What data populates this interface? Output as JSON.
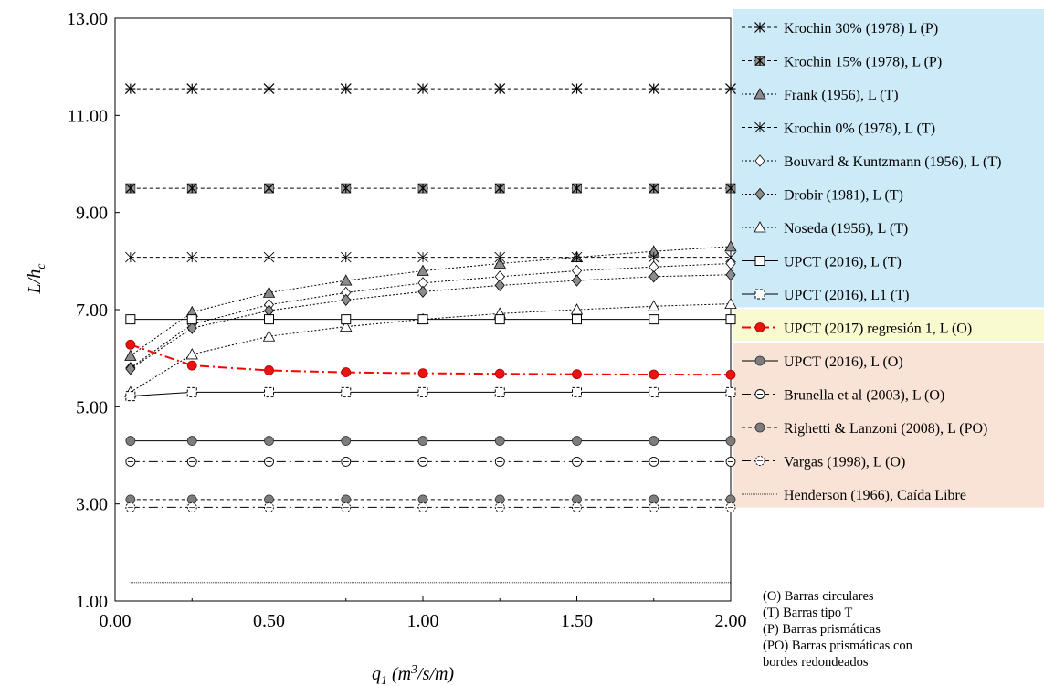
{
  "chart_data": {
    "type": "line",
    "xlabel": "q1 (m3/s/m)",
    "ylabel": "L/hc",
    "xlim": [
      0,
      2
    ],
    "ylim": [
      1,
      13
    ],
    "xticks": [
      "0.00",
      "0.50",
      "1.00",
      "1.50",
      "2.00"
    ],
    "yticks": [
      "1.00",
      "3.00",
      "5.00",
      "7.00",
      "9.00",
      "11.00",
      "13.00"
    ],
    "grid": false,
    "legend_position": "right",
    "x": [
      0.05,
      0.25,
      0.5,
      0.75,
      1.0,
      1.25,
      1.5,
      1.75,
      2.0
    ],
    "series": [
      {
        "name": "Krochin 30% (1978) L (P)",
        "marker": "star",
        "line": "dash",
        "color": "#000000",
        "values": [
          11.55,
          11.55,
          11.55,
          11.55,
          11.55,
          11.55,
          11.55,
          11.55,
          11.55
        ]
      },
      {
        "name": "Krochin 15% (1978), L (P)",
        "marker": "boxstar",
        "line": "dash",
        "color": "#000000",
        "values": [
          9.5,
          9.5,
          9.5,
          9.5,
          9.5,
          9.5,
          9.5,
          9.5,
          9.5
        ]
      },
      {
        "name": "Frank (1956), L (T)",
        "marker": "triangle-filled",
        "line": "dot",
        "color": "#000000",
        "values": [
          6.05,
          6.95,
          7.35,
          7.6,
          7.8,
          7.95,
          8.08,
          8.2,
          8.3
        ]
      },
      {
        "name": "Krochin 0% (1978), L (T)",
        "marker": "star-light",
        "line": "dash",
        "color": "#000000",
        "values": [
          8.08,
          8.08,
          8.08,
          8.08,
          8.08,
          8.08,
          8.08,
          8.08,
          8.08
        ]
      },
      {
        "name": "Bouvard & Kuntzmann (1956), L (T)",
        "marker": "diamond-open",
        "line": "dot",
        "color": "#000000",
        "values": [
          5.8,
          6.7,
          7.1,
          7.35,
          7.55,
          7.68,
          7.8,
          7.88,
          7.95
        ]
      },
      {
        "name": "Drobir (1981), L (T)",
        "marker": "diamond-filled",
        "line": "dot",
        "color": "#000000",
        "values": [
          5.78,
          6.62,
          6.98,
          7.2,
          7.37,
          7.5,
          7.6,
          7.68,
          7.72
        ]
      },
      {
        "name": "Noseda (1956), L (T)",
        "marker": "triangle-open",
        "line": "dot",
        "color": "#000000",
        "values": [
          5.3,
          6.08,
          6.45,
          6.65,
          6.8,
          6.92,
          7.0,
          7.07,
          7.12
        ]
      },
      {
        "name": "UPCT (2016), L (T)",
        "marker": "square-open",
        "line": "solid",
        "color": "#000000",
        "values": [
          6.8,
          6.8,
          6.8,
          6.8,
          6.8,
          6.8,
          6.8,
          6.8,
          6.8
        ]
      },
      {
        "name": "UPCT (2016), L1 (T)",
        "marker": "square-dashed",
        "line": "solid",
        "color": "#000000",
        "values": [
          5.22,
          5.3,
          5.3,
          5.3,
          5.3,
          5.3,
          5.3,
          5.3,
          5.3
        ]
      },
      {
        "name": "UPCT (2017) regresión 1, L (O)",
        "marker": "circle-red",
        "line": "dashdot",
        "color": "#ff0000",
        "values": [
          6.28,
          5.85,
          5.75,
          5.71,
          5.69,
          5.68,
          5.67,
          5.665,
          5.66
        ]
      },
      {
        "name": "UPCT (2016), L (O)",
        "marker": "circle-filled",
        "line": "solid",
        "color": "#000000",
        "values": [
          4.3,
          4.3,
          4.3,
          4.3,
          4.3,
          4.3,
          4.3,
          4.3,
          4.3
        ]
      },
      {
        "name": "Brunella et al (2003), L (O)",
        "marker": "circle-slash",
        "line": "dashdot",
        "color": "#000000",
        "values": [
          3.87,
          3.87,
          3.87,
          3.87,
          3.87,
          3.87,
          3.87,
          3.87,
          3.87
        ]
      },
      {
        "name": "Righetti & Lanzoni (2008), L (PO)",
        "marker": "circle-filled",
        "line": "dash",
        "color": "#000000",
        "values": [
          3.09,
          3.09,
          3.09,
          3.09,
          3.09,
          3.09,
          3.09,
          3.09,
          3.09
        ]
      },
      {
        "name": "Vargas (1998), L (O)",
        "marker": "circle-dotted",
        "line": "dashdot",
        "color": "#000000",
        "values": [
          2.93,
          2.93,
          2.93,
          2.93,
          2.93,
          2.93,
          2.93,
          2.93,
          2.93
        ]
      },
      {
        "name": "Henderson (1966), Caída Libre",
        "marker": "none",
        "line": "fine-dot",
        "color": "#000000",
        "values": [
          1.38,
          1.38,
          1.38,
          1.38,
          1.38,
          1.38,
          1.38,
          1.38,
          1.38
        ]
      }
    ],
    "legend_groups": [
      {
        "color": "#cdeaf8",
        "from": 0,
        "to": 8
      },
      {
        "color": "#fafad0",
        "from": 9,
        "to": 9
      },
      {
        "color": "#f9e3d6",
        "from": 10,
        "to": 14
      }
    ],
    "notes": [
      "(O)    Barras circulares",
      "(T)    Barras tipo T",
      "(P)    Barras prismáticas",
      "(PO) Barras prismáticas  con",
      "bordes redondeados"
    ]
  }
}
